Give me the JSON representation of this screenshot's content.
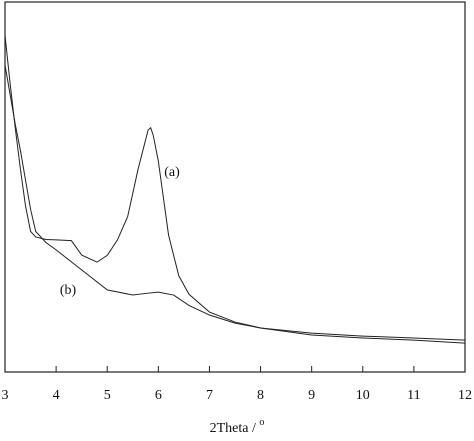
{
  "chart_data": {
    "type": "line",
    "xlabel": "2Theta / ",
    "xlabel_sup": "o",
    "xlim": [
      3,
      12
    ],
    "xticks": [
      3,
      4,
      5,
      6,
      7,
      8,
      9,
      10,
      11,
      12
    ],
    "ylim": [
      0,
      100
    ],
    "series": [
      {
        "name": "(a)",
        "color": "#222",
        "x": [
          3,
          3.1,
          3.2,
          3.3,
          3.4,
          3.5,
          3.6,
          3.8,
          4,
          4.3,
          4.5,
          4.8,
          5,
          5.2,
          5.4,
          5.6,
          5.7,
          5.8,
          5.85,
          5.9,
          6,
          6.1,
          6.2,
          6.4,
          6.6,
          7,
          7.5,
          8,
          9,
          10,
          11,
          12
        ],
        "values": [
          91,
          78,
          66,
          55,
          45,
          38,
          36.5,
          35.8,
          35.7,
          35.5,
          31.6,
          29.7,
          31.5,
          35.7,
          42,
          54.6,
          60,
          65.4,
          66,
          64,
          57,
          47,
          37,
          26,
          21,
          16.2,
          13.5,
          11.9,
          10.5,
          9.7,
          9.2,
          8.6
        ]
      },
      {
        "name": "(b)",
        "color": "#222",
        "x": [
          3,
          3.1,
          3.2,
          3.3,
          3.4,
          3.5,
          3.6,
          3.8,
          4,
          4.5,
          5,
          5.5,
          5.8,
          6,
          6.3,
          6.6,
          7,
          7.5,
          8,
          9,
          10,
          11,
          12
        ],
        "values": [
          83,
          75,
          67,
          60,
          52,
          44,
          38,
          35,
          33,
          27.6,
          22.2,
          20.8,
          21.3,
          21.6,
          20.8,
          18,
          15.4,
          13.2,
          11.9,
          10,
          9.2,
          8.6,
          7.8
        ]
      }
    ]
  }
}
